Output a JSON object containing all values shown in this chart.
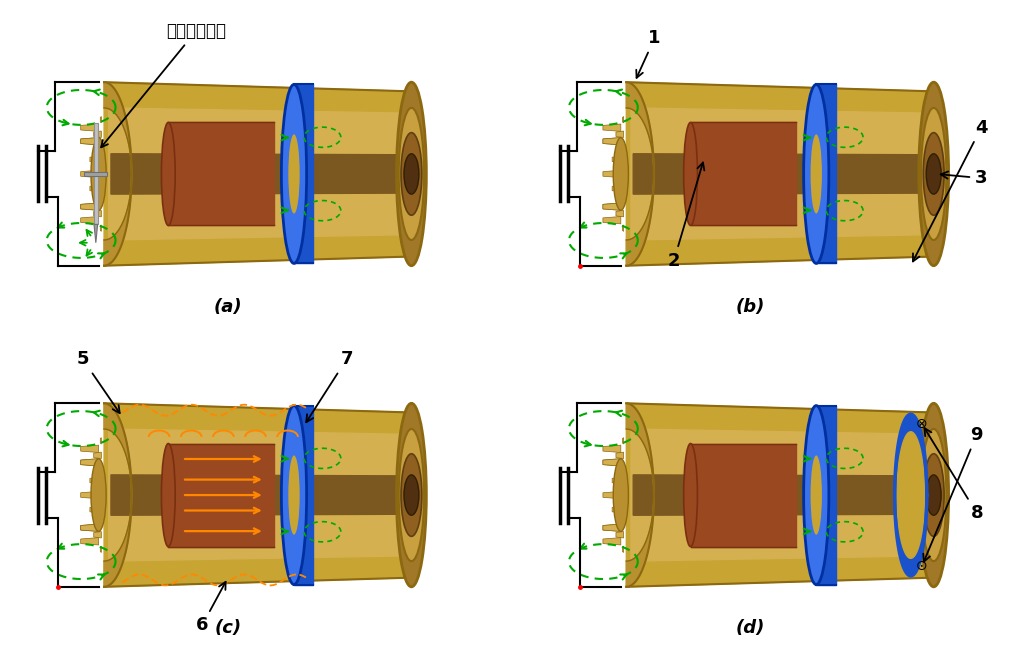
{
  "bg": "#ffffff",
  "fw": 10.24,
  "fh": 6.69,
  "dpi": 100,
  "gold_outer": "#C8A432",
  "gold_mid": "#D4B050",
  "gold_inner": "#B89030",
  "gold_dark": "#8C6810",
  "gold_rim": "#A07828",
  "gold_end": "#C09030",
  "blue_ring": "#1A52CC",
  "blue_light": "#3A72EC",
  "brown_coil": "#7A3010",
  "brown_light": "#9A4820",
  "green_field": "#00AA00",
  "orange_curr": "#FF8800",
  "gray_valve": "#B0B0B0",
  "gray_dark": "#808080",
  "red_dot": "#FF0000",
  "panel_titles": [
    "(a)",
    "(b)",
    "(c)",
    "(d)"
  ],
  "label_a": "快速加注气体"
}
